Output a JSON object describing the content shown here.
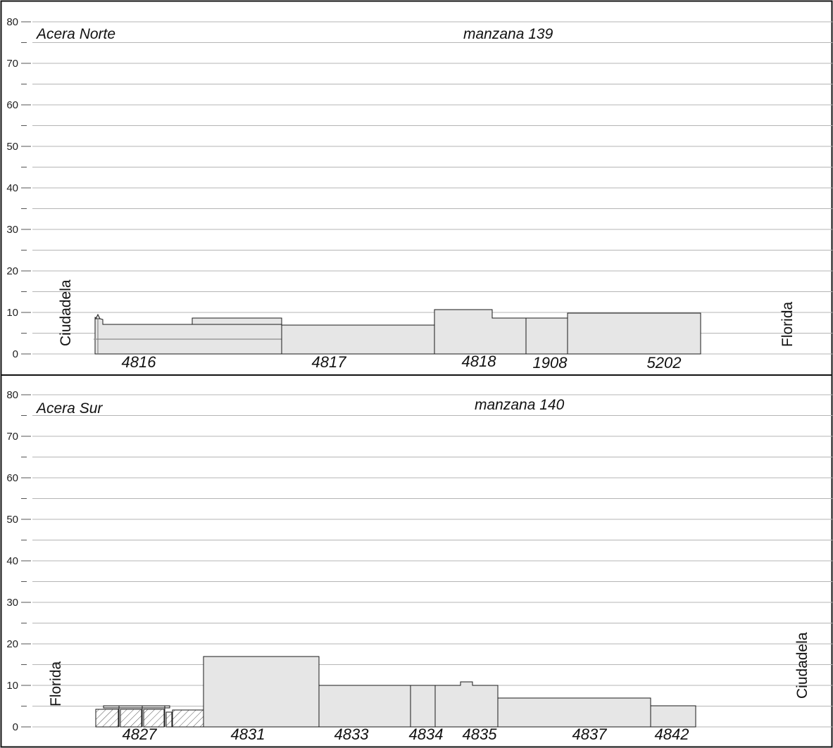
{
  "panels": [
    {
      "id": "norte",
      "sidewalk": "Acera Norte",
      "block": "manzana 139",
      "left_street": "Ciudadela",
      "right_street": "Florida",
      "y_axis": {
        "min": 0,
        "max": 80,
        "major_step": 10,
        "ticks": [
          "0",
          "10",
          "20",
          "30",
          "40",
          "50",
          "60",
          "70",
          "80"
        ]
      },
      "lots": [
        "4816",
        "4817",
        "4818",
        "1908",
        "5202"
      ],
      "buildings": [
        {
          "lot": "4816",
          "height_m": 7
        },
        {
          "lot": "4816",
          "height_m": 8.5
        },
        {
          "lot": "4817",
          "height_m": 7
        },
        {
          "lot": "4818",
          "height_m": 10.5
        },
        {
          "lot": "1908",
          "height_m": 8.5
        },
        {
          "lot": "5202",
          "height_m": 9.8
        }
      ]
    },
    {
      "id": "sur",
      "sidewalk": "Acera Sur",
      "block": "manzana 140",
      "left_street": "Florida",
      "right_street": "Ciudadela",
      "y_axis": {
        "min": 0,
        "max": 80,
        "major_step": 10,
        "ticks": [
          "0",
          "10",
          "20",
          "30",
          "40",
          "50",
          "60",
          "70",
          "80"
        ]
      },
      "lots": [
        "4827",
        "4831",
        "4833",
        "4834",
        "4835",
        "4837",
        "4842"
      ],
      "buildings": [
        {
          "lot": "4827",
          "height_m": 4
        },
        {
          "lot": "4831",
          "height_m": 17
        },
        {
          "lot": "4833",
          "height_m": 10
        },
        {
          "lot": "4834",
          "height_m": 10
        },
        {
          "lot": "4835",
          "height_m": 10
        },
        {
          "lot": "4837",
          "height_m": 7
        },
        {
          "lot": "4842",
          "height_m": 5
        }
      ]
    }
  ],
  "colors": {
    "building_fill": "#e6e6e6",
    "outline": "#1a1a1a",
    "grid": "#b5b5b5",
    "hatch": "#555555"
  }
}
